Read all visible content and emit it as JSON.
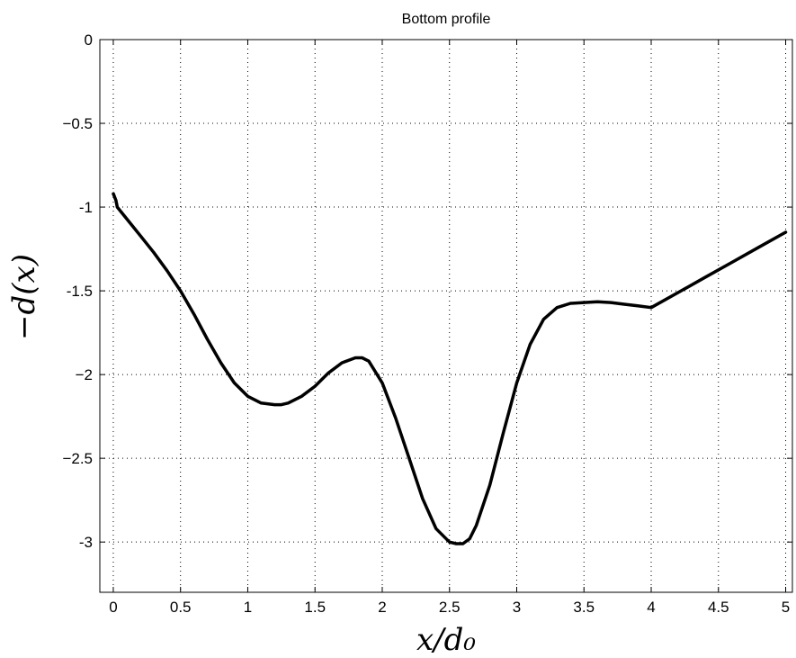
{
  "chart_data": {
    "type": "line",
    "title": "Bottom profile",
    "xlabel": "x/d₀",
    "ylabel": "−d(x)",
    "xlim": [
      -0.1,
      5.05
    ],
    "ylim": [
      -3.3,
      0
    ],
    "xticks": [
      0,
      0.5,
      1,
      1.5,
      2,
      2.5,
      3,
      3.5,
      4,
      4.5,
      5
    ],
    "xtick_labels": [
      "0",
      "0.5",
      "1",
      "1.5",
      "2",
      "2.5",
      "3",
      "3.5",
      "4",
      "4.5",
      "5"
    ],
    "yticks": [
      0,
      -0.5,
      -1,
      -1.5,
      -2,
      -2.5,
      -3
    ],
    "ytick_labels": [
      "0",
      "−0.5",
      "-1",
      "-1.5",
      "−2",
      "−2.5",
      "-3"
    ],
    "grid": true,
    "series": [
      {
        "color": "#000000",
        "x": [
          0,
          0.02,
          0.03,
          0.1,
          0.2,
          0.3,
          0.4,
          0.5,
          0.6,
          0.7,
          0.8,
          0.9,
          1.0,
          1.1,
          1.2,
          1.25,
          1.3,
          1.4,
          1.5,
          1.6,
          1.7,
          1.8,
          1.85,
          1.9,
          2.0,
          2.1,
          2.2,
          2.3,
          2.4,
          2.5,
          2.55,
          2.6,
          2.65,
          2.7,
          2.8,
          2.9,
          3.0,
          3.1,
          3.2,
          3.3,
          3.4,
          3.5,
          3.6,
          3.7,
          3.8,
          3.9,
          4.0,
          4.2,
          4.4,
          4.6,
          4.8,
          5.0
        ],
        "y": [
          -0.92,
          -0.96,
          -1.0,
          -1.07,
          -1.17,
          -1.27,
          -1.38,
          -1.5,
          -1.64,
          -1.79,
          -1.93,
          -2.05,
          -2.13,
          -2.17,
          -2.18,
          -2.18,
          -2.17,
          -2.13,
          -2.07,
          -1.99,
          -1.93,
          -1.9,
          -1.9,
          -1.92,
          -2.05,
          -2.26,
          -2.5,
          -2.74,
          -2.92,
          -3.0,
          -3.01,
          -3.01,
          -2.98,
          -2.9,
          -2.66,
          -2.35,
          -2.05,
          -1.82,
          -1.67,
          -1.6,
          -1.575,
          -1.57,
          -1.565,
          -1.57,
          -1.58,
          -1.59,
          -1.6,
          -1.51,
          -1.42,
          -1.33,
          -1.24,
          -1.15
        ]
      }
    ]
  }
}
